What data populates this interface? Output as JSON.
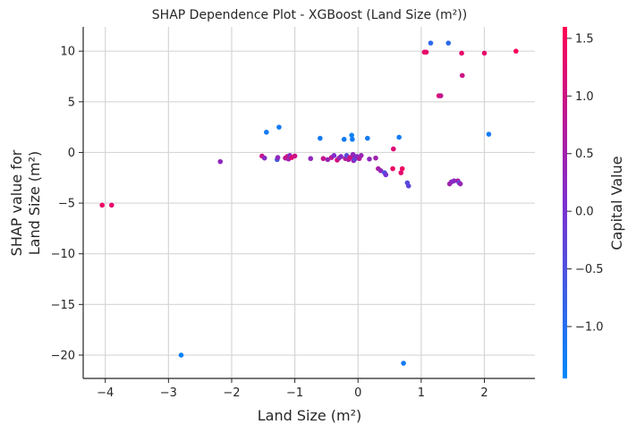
{
  "chart_data": {
    "type": "scatter",
    "title": "SHAP Dependence Plot - XGBoost (Land Size (m²))",
    "xlabel": "Land Size (m²)",
    "ylabel_lines": [
      "SHAP value for",
      "Land Size (m²)"
    ],
    "xlim": [
      -4.35,
      2.8
    ],
    "ylim": [
      -22.3,
      12.4
    ],
    "xticks": [
      -4,
      -3,
      -2,
      -1,
      0,
      1,
      2
    ],
    "xtick_labels": [
      "−4",
      "−3",
      "−2",
      "−1",
      "0",
      "1",
      "2"
    ],
    "yticks": [
      -20,
      -15,
      -10,
      -5,
      0,
      5,
      10
    ],
    "ytick_labels": [
      "−20",
      "−15",
      "−10",
      "−5",
      "0",
      "5",
      "10"
    ],
    "grid": true,
    "colorbar": {
      "label": "Capital Value",
      "range": [
        -1.45,
        1.6
      ],
      "ticks": [
        -1.0,
        -0.5,
        0.0,
        0.5,
        1.0,
        1.5
      ],
      "tick_labels": [
        "−1.0",
        "−0.5",
        "0.0",
        "0.5",
        "1.0",
        "1.5"
      ],
      "colors": [
        "#008afb",
        "#7d2fd0",
        "#ff0052"
      ]
    },
    "points": [
      {
        "x": -4.05,
        "y": -5.2,
        "c": 1.4
      },
      {
        "x": -3.9,
        "y": -5.2,
        "c": 1.3
      },
      {
        "x": -2.8,
        "y": -20.0,
        "c": -1.3
      },
      {
        "x": -2.18,
        "y": -0.9,
        "c": 0.3
      },
      {
        "x": -1.52,
        "y": -0.35,
        "c": 1.0
      },
      {
        "x": -1.48,
        "y": -0.55,
        "c": 0.2
      },
      {
        "x": -1.45,
        "y": 2.0,
        "c": -1.2
      },
      {
        "x": -1.28,
        "y": -0.7,
        "c": -0.6
      },
      {
        "x": -1.27,
        "y": -0.5,
        "c": 0.3
      },
      {
        "x": -1.25,
        "y": 2.5,
        "c": -1.2
      },
      {
        "x": -1.15,
        "y": -0.55,
        "c": 0.8
      },
      {
        "x": -1.12,
        "y": -0.4,
        "c": 1.1
      },
      {
        "x": -1.1,
        "y": -0.65,
        "c": 0.5
      },
      {
        "x": -1.08,
        "y": -0.3,
        "c": 0.2
      },
      {
        "x": -1.05,
        "y": -0.5,
        "c": 1.2
      },
      {
        "x": -1.0,
        "y": -0.35,
        "c": 1.0
      },
      {
        "x": -0.75,
        "y": -0.6,
        "c": 0.3
      },
      {
        "x": -0.6,
        "y": 1.4,
        "c": -1.2
      },
      {
        "x": -0.55,
        "y": -0.6,
        "c": 0.9
      },
      {
        "x": -0.48,
        "y": -0.7,
        "c": 0.4
      },
      {
        "x": -0.42,
        "y": -0.5,
        "c": 0.8
      },
      {
        "x": -0.38,
        "y": -0.3,
        "c": 0.1
      },
      {
        "x": -0.33,
        "y": -0.75,
        "c": 1.1
      },
      {
        "x": -0.3,
        "y": -0.55,
        "c": 0.5
      },
      {
        "x": -0.27,
        "y": -0.4,
        "c": 0.2
      },
      {
        "x": -0.22,
        "y": 1.3,
        "c": -1.2
      },
      {
        "x": -0.2,
        "y": -0.6,
        "c": 0.7
      },
      {
        "x": -0.18,
        "y": -0.3,
        "c": -0.4
      },
      {
        "x": -0.15,
        "y": -0.7,
        "c": 0.6
      },
      {
        "x": -0.13,
        "y": -0.5,
        "c": 1.0
      },
      {
        "x": -0.1,
        "y": 1.7,
        "c": -1.3
      },
      {
        "x": -0.09,
        "y": 1.3,
        "c": -1.2
      },
      {
        "x": -0.08,
        "y": -0.2,
        "c": 0.3
      },
      {
        "x": -0.07,
        "y": -0.8,
        "c": 0.4
      },
      {
        "x": -0.06,
        "y": -0.5,
        "c": 0.5
      },
      {
        "x": -0.05,
        "y": -0.65,
        "c": -0.3
      },
      {
        "x": -0.02,
        "y": -0.4,
        "c": 0.2
      },
      {
        "x": 0.02,
        "y": -0.6,
        "c": 0.7
      },
      {
        "x": 0.05,
        "y": -0.3,
        "c": 0.4
      },
      {
        "x": 0.15,
        "y": 1.4,
        "c": -1.2
      },
      {
        "x": 0.18,
        "y": -0.65,
        "c": 0.3
      },
      {
        "x": 0.28,
        "y": -0.55,
        "c": 0.5
      },
      {
        "x": 0.32,
        "y": -1.6,
        "c": 0.6
      },
      {
        "x": 0.36,
        "y": -1.8,
        "c": 0.3
      },
      {
        "x": 0.42,
        "y": -2.0,
        "c": -0.5
      },
      {
        "x": 0.44,
        "y": -2.2,
        "c": 0.0
      },
      {
        "x": 0.55,
        "y": -1.6,
        "c": 1.4
      },
      {
        "x": 0.56,
        "y": 0.35,
        "c": 1.2
      },
      {
        "x": 0.65,
        "y": 1.5,
        "c": -1.2
      },
      {
        "x": 0.68,
        "y": -2.0,
        "c": 1.3
      },
      {
        "x": 0.7,
        "y": -1.6,
        "c": 1.4
      },
      {
        "x": 0.72,
        "y": -20.8,
        "c": -1.2
      },
      {
        "x": 0.78,
        "y": -3.0,
        "c": -0.4
      },
      {
        "x": 0.8,
        "y": -3.3,
        "c": -0.3
      },
      {
        "x": 1.05,
        "y": 9.9,
        "c": 1.4
      },
      {
        "x": 1.08,
        "y": 9.9,
        "c": 1.3
      },
      {
        "x": 1.15,
        "y": 10.8,
        "c": -0.9
      },
      {
        "x": 1.28,
        "y": 5.6,
        "c": 1.2
      },
      {
        "x": 1.31,
        "y": 5.6,
        "c": 0.9
      },
      {
        "x": 1.43,
        "y": 10.8,
        "c": -0.9
      },
      {
        "x": 1.45,
        "y": -3.1,
        "c": 0.5
      },
      {
        "x": 1.48,
        "y": -2.9,
        "c": 0.3
      },
      {
        "x": 1.52,
        "y": -2.8,
        "c": 0.2
      },
      {
        "x": 1.58,
        "y": -2.8,
        "c": 0.6
      },
      {
        "x": 1.6,
        "y": -3.0,
        "c": -0.4
      },
      {
        "x": 1.62,
        "y": -3.1,
        "c": 0.4
      },
      {
        "x": 1.64,
        "y": 9.8,
        "c": 1.3
      },
      {
        "x": 1.65,
        "y": 7.6,
        "c": 1.0
      },
      {
        "x": 2.0,
        "y": 9.8,
        "c": 1.3
      },
      {
        "x": 2.07,
        "y": 1.8,
        "c": -1.2
      },
      {
        "x": 2.5,
        "y": 10.0,
        "c": 1.5
      }
    ]
  }
}
